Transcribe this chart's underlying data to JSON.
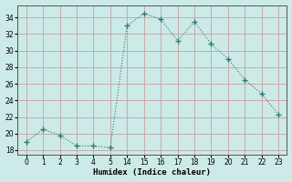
{
  "x": [
    0,
    1,
    2,
    3,
    4,
    5,
    14,
    15,
    16,
    17,
    18,
    19,
    20,
    21,
    22,
    23
  ],
  "y": [
    19.0,
    20.5,
    19.8,
    18.5,
    18.5,
    18.3,
    33.0,
    34.5,
    33.8,
    31.2,
    33.5,
    30.8,
    29.0,
    26.5,
    24.8,
    22.3
  ],
  "line_color": "#2e7d72",
  "marker": "+",
  "marker_size": 5,
  "bg_color": "#cceae7",
  "grid_major_color": "#c8a0a0",
  "xlabel": "Humidex (Indice chaleur)",
  "xlim_idx": [
    -0.5,
    15.5
  ],
  "ylim": [
    17.5,
    35.5
  ],
  "yticks": [
    18,
    20,
    22,
    24,
    26,
    28,
    30,
    32,
    34
  ],
  "xtick_labels": [
    "0",
    "1",
    "2",
    "3",
    "4",
    "5",
    "14",
    "15",
    "16",
    "17",
    "18",
    "19",
    "20",
    "21",
    "22",
    "23"
  ]
}
